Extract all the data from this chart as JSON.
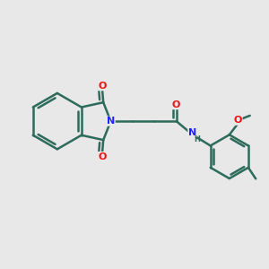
{
  "background_color": "#e8e8e8",
  "bond_color": "#2d6b5a",
  "bond_width": 1.8,
  "atom_colors": {
    "N": "#2222ff",
    "O": "#ee1111",
    "C": "#2d6b5a",
    "H": "#2d6b5a"
  },
  "figsize": [
    3.0,
    3.0
  ],
  "dpi": 100
}
